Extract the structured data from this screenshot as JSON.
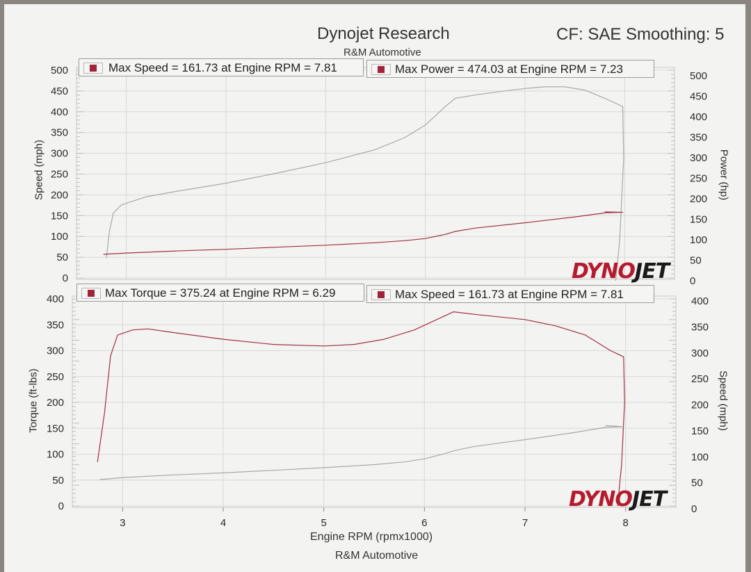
{
  "header": {
    "title": "Dynojet Research",
    "subtitle": "R&M Automotive",
    "cf_text": "CF: SAE Smoothing: 5",
    "footer": "R&M Automotive"
  },
  "logo": {
    "part_a": "DYNO",
    "part_b": "JET"
  },
  "colors": {
    "curve_gray": "#a8a8a8",
    "curve_red": "#a03040",
    "accent": "#a0253a",
    "grid": "#d8d8d8"
  },
  "chart_data": [
    {
      "type": "line",
      "title": "Dynojet Research",
      "xlabel": "Engine RPM (rpmx1000)",
      "ylabel": "Speed (mph)",
      "y2label": "Power (hp)",
      "xlim": [
        2.5,
        8.5
      ],
      "ylim": [
        0,
        500
      ],
      "y2lim": [
        0,
        500
      ],
      "y_ticks": [
        0,
        50,
        100,
        150,
        200,
        250,
        300,
        350,
        400,
        450,
        500
      ],
      "y2_ticks": [
        0,
        50,
        100,
        150,
        200,
        250,
        300,
        350,
        400,
        450,
        500
      ],
      "grid": true,
      "legend": [
        "Max Speed = 161.73 at Engine RPM = 7.81",
        "Max Power = 474.03 at Engine RPM = 7.23"
      ],
      "series": [
        {
          "axis": "y2",
          "color": "gray",
          "points": [
            [
              2.8,
              55
            ],
            [
              2.83,
              120
            ],
            [
              2.87,
              165
            ],
            [
              2.95,
              185
            ],
            [
              3.2,
              205
            ],
            [
              3.5,
              218
            ],
            [
              4.0,
              238
            ],
            [
              4.5,
              262
            ],
            [
              5.0,
              288
            ],
            [
              5.5,
              320
            ],
            [
              5.8,
              350
            ],
            [
              6.0,
              380
            ],
            [
              6.1,
              402
            ],
            [
              6.2,
              425
            ],
            [
              6.3,
              445
            ],
            [
              6.5,
              453
            ],
            [
              6.8,
              463
            ],
            [
              7.0,
              469
            ],
            [
              7.2,
              473
            ],
            [
              7.4,
              473
            ],
            [
              7.6,
              465
            ],
            [
              7.8,
              445
            ],
            [
              7.98,
              425
            ],
            [
              7.99,
              300
            ],
            [
              7.95,
              100
            ],
            [
              7.91,
              0
            ]
          ]
        },
        {
          "axis": "y",
          "color": "red",
          "points": [
            [
              2.77,
              57
            ],
            [
              3.0,
              60
            ],
            [
              3.5,
              65
            ],
            [
              4.0,
              69
            ],
            [
              4.5,
              74
            ],
            [
              5.0,
              79
            ],
            [
              5.5,
              85
            ],
            [
              5.8,
              90
            ],
            [
              6.0,
              95
            ],
            [
              6.2,
              105
            ],
            [
              6.3,
              112
            ],
            [
              6.5,
              120
            ],
            [
              7.0,
              133
            ],
            [
              7.5,
              147
            ],
            [
              7.81,
              157
            ],
            [
              7.98,
              158
            ],
            [
              7.8,
              159
            ]
          ]
        }
      ]
    },
    {
      "type": "line",
      "xlabel": "Engine RPM (rpmx1000)",
      "ylabel": "Torque (ft-lbs)",
      "y2label": "Speed (mph)",
      "xlim": [
        2.5,
        8.5
      ],
      "ylim": [
        0,
        400
      ],
      "y2lim": [
        0,
        400
      ],
      "y_ticks": [
        0,
        50,
        100,
        150,
        200,
        250,
        300,
        350,
        400
      ],
      "y2_ticks": [
        0,
        50,
        100,
        150,
        200,
        250,
        300,
        350,
        400
      ],
      "x_ticks": [
        3,
        4,
        5,
        6,
        7,
        8
      ],
      "grid": true,
      "legend": [
        "Max Torque = 375.24 at Engine RPM = 6.29",
        "Max Speed = 161.73 at Engine RPM = 7.81"
      ],
      "series": [
        {
          "axis": "y",
          "color": "red",
          "points": [
            [
              2.75,
              85
            ],
            [
              2.82,
              180
            ],
            [
              2.88,
              290
            ],
            [
              2.95,
              330
            ],
            [
              3.1,
              340
            ],
            [
              3.25,
              342
            ],
            [
              3.5,
              335
            ],
            [
              4.0,
              322
            ],
            [
              4.5,
              312
            ],
            [
              5.0,
              309
            ],
            [
              5.3,
              312
            ],
            [
              5.6,
              322
            ],
            [
              5.9,
              340
            ],
            [
              6.1,
              358
            ],
            [
              6.29,
              375
            ],
            [
              6.5,
              370
            ],
            [
              7.0,
              360
            ],
            [
              7.3,
              348
            ],
            [
              7.6,
              330
            ],
            [
              7.85,
              300
            ],
            [
              7.98,
              288
            ],
            [
              7.99,
              200
            ],
            [
              7.96,
              80
            ],
            [
              7.92,
              0
            ]
          ]
        },
        {
          "axis": "y2",
          "color": "gray",
          "points": [
            [
              2.77,
              56
            ],
            [
              3.0,
              60
            ],
            [
              3.5,
              65
            ],
            [
              4.0,
              69
            ],
            [
              4.5,
              74
            ],
            [
              5.0,
              79
            ],
            [
              5.5,
              85
            ],
            [
              5.8,
              90
            ],
            [
              6.0,
              96
            ],
            [
              6.2,
              106
            ],
            [
              6.3,
              112
            ],
            [
              6.5,
              120
            ],
            [
              7.0,
              133
            ],
            [
              7.5,
              147
            ],
            [
              7.81,
              157
            ],
            [
              7.98,
              158
            ],
            [
              7.8,
              160
            ]
          ]
        }
      ]
    }
  ]
}
